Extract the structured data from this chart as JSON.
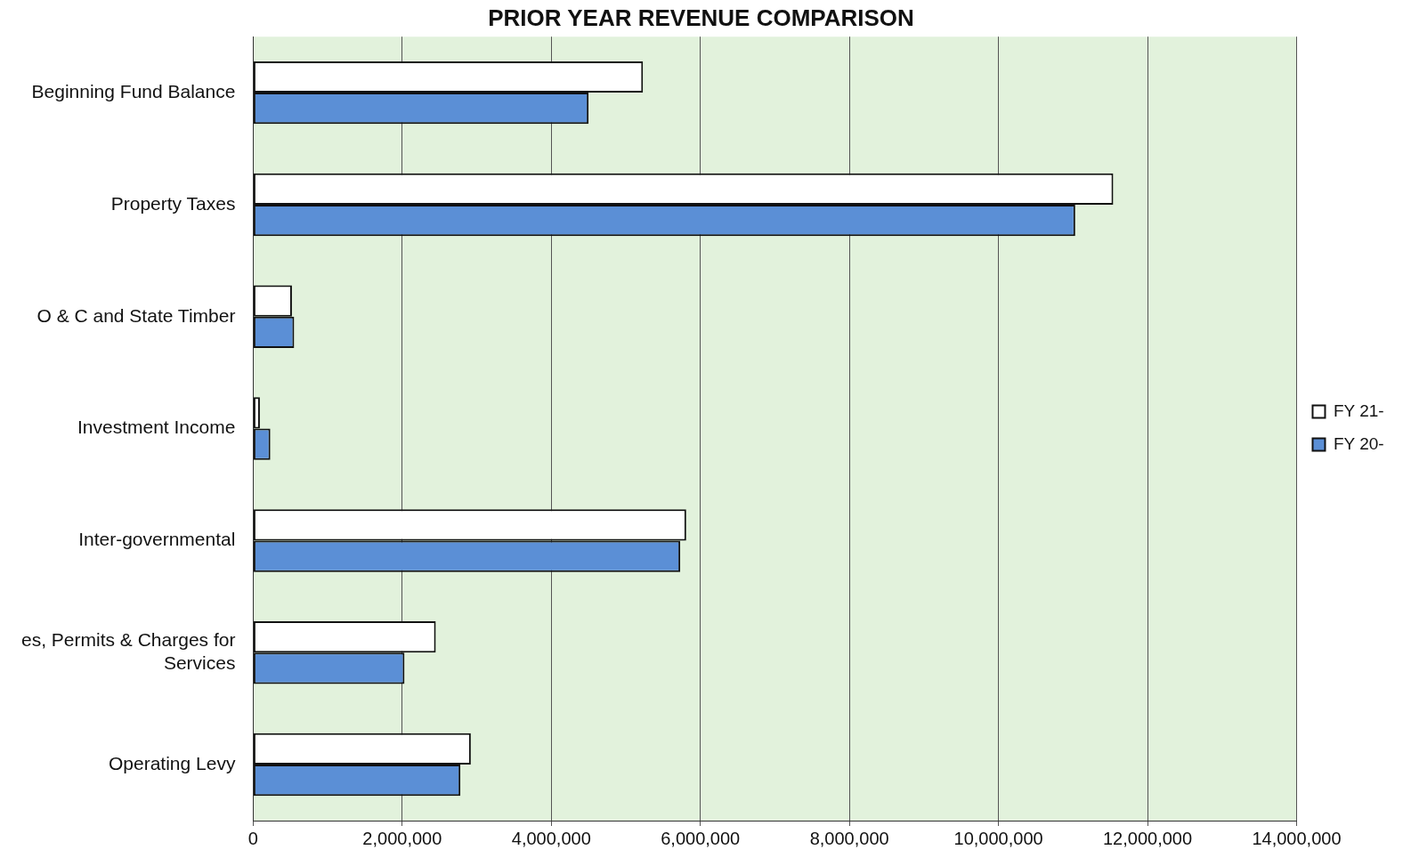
{
  "chart_data": {
    "type": "bar",
    "orientation": "horizontal",
    "title": "PRIOR YEAR REVENUE COMPARISON",
    "categories": [
      "Beginning Fund Balance",
      "Property Taxes",
      "O & C and State Timber",
      "Investment Income",
      "Inter-governmental",
      "es, Permits & Charges for Services",
      "Operating Levy"
    ],
    "series": [
      {
        "name": "FY 21-",
        "color": "#ffffff",
        "values": [
          5230000,
          11540000,
          520000,
          90000,
          5810000,
          2450000,
          2920000
        ]
      },
      {
        "name": "FY 20-",
        "color": "#5b8fd6",
        "values": [
          4500000,
          11030000,
          550000,
          230000,
          5730000,
          2030000,
          2780000
        ]
      }
    ],
    "xlim": [
      0,
      14000000
    ],
    "xticks": [
      0,
      {
        "value": 2000000,
        "label": "2,000,000"
      },
      {
        "value": 4000000,
        "label": "4,000,000"
      },
      {
        "value": 6000000,
        "label": "6,000,000"
      },
      {
        "value": 8000000,
        "label": "8,000,000"
      },
      {
        "value": 10000000,
        "label": "10,000,000"
      },
      {
        "value": 12000000,
        "label": "12,000,000"
      },
      {
        "value": 14000000,
        "label": "14,000,000"
      }
    ],
    "grid": "x",
    "legend": "right"
  }
}
